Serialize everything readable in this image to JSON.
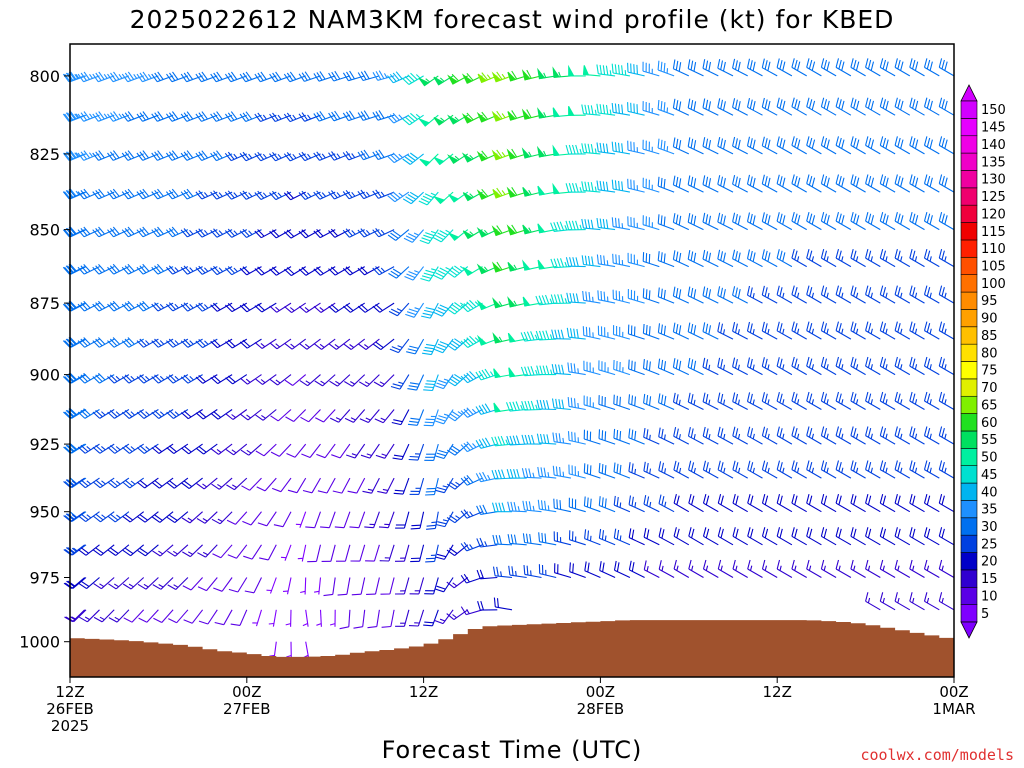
{
  "title": "2025022612 NAM3KM forecast wind profile (kt) for KBED",
  "credit": "coolwx.com/models",
  "chart_data": {
    "type": "wind_barb_profile",
    "title": "2025022612 NAM3KM forecast wind profile (kt) for KBED",
    "xlabel": "Forecast Time (UTC)",
    "ylabel": "",
    "units": "kt",
    "x_start": "2025-02-26 12Z",
    "x_end": "2025-03-01 00Z",
    "time_step_hours": 1,
    "y_axis": {
      "ticks": [
        800,
        825,
        850,
        875,
        900,
        925,
        950,
        975,
        1000
      ],
      "ylim": [
        790,
        1014
      ],
      "direction": "inverted"
    },
    "x_ticks": [
      {
        "hour": 0,
        "lines": [
          "12Z",
          "26FEB",
          "2025"
        ]
      },
      {
        "hour": 12,
        "lines": [
          "00Z",
          "27FEB"
        ]
      },
      {
        "hour": 24,
        "lines": [
          "12Z"
        ]
      },
      {
        "hour": 36,
        "lines": [
          "00Z",
          "28FEB"
        ]
      },
      {
        "hour": 48,
        "lines": [
          "12Z"
        ]
      },
      {
        "hour": 60,
        "lines": [
          "00Z",
          "1MAR"
        ]
      }
    ],
    "colorbar": {
      "min": 5,
      "max": 150,
      "step": 5,
      "labels": [
        5,
        10,
        15,
        20,
        25,
        30,
        35,
        40,
        45,
        50,
        55,
        60,
        65,
        70,
        75,
        80,
        85,
        90,
        95,
        100,
        105,
        110,
        115,
        120,
        125,
        130,
        135,
        140,
        145,
        150
      ]
    },
    "surface_pressure_hpa": {
      "hours": [
        0,
        2,
        4,
        6,
        8,
        10,
        12,
        14,
        16,
        18,
        20,
        22,
        24,
        25,
        26,
        27,
        28,
        30,
        32,
        34,
        36,
        38,
        40,
        42,
        44,
        46,
        48,
        50,
        52,
        54,
        56,
        58,
        60
      ],
      "pressure": [
        998.5,
        999.0,
        999.5,
        1000.5,
        1001.5,
        1003.5,
        1004.5,
        1006.0,
        1006.0,
        1005.5,
        1004.0,
        1003.0,
        1001.5,
        1000.0,
        998.0,
        996.0,
        994.0,
        993.5,
        993.0,
        992.5,
        992.0,
        991.5,
        991.5,
        991.5,
        991.5,
        991.5,
        991.5,
        991.5,
        992.0,
        993.0,
        995.0,
        997.0,
        999.0
      ]
    },
    "wind_samples": [
      {
        "hour": 0,
        "levels": [
          [
            800,
            250,
            35
          ],
          [
            850,
            245,
            32
          ],
          [
            900,
            240,
            30
          ],
          [
            950,
            235,
            28
          ],
          [
            990,
            225,
            15
          ]
        ]
      },
      {
        "hour": 8,
        "levels": [
          [
            800,
            250,
            32
          ],
          [
            850,
            245,
            28
          ],
          [
            900,
            240,
            25
          ],
          [
            950,
            230,
            18
          ],
          [
            990,
            220,
            10
          ]
        ]
      },
      {
        "hour": 16,
        "levels": [
          [
            800,
            250,
            28
          ],
          [
            850,
            240,
            20
          ],
          [
            900,
            230,
            12
          ],
          [
            950,
            200,
            7
          ],
          [
            990,
            170,
            6
          ]
        ]
      },
      {
        "hour": 22,
        "levels": [
          [
            800,
            255,
            33
          ],
          [
            850,
            245,
            25
          ],
          [
            900,
            225,
            16
          ],
          [
            950,
            200,
            14
          ],
          [
            990,
            190,
            10
          ]
        ]
      },
      {
        "hour": 25,
        "levels": [
          [
            800,
            235,
            55
          ],
          [
            850,
            215,
            45
          ],
          [
            900,
            200,
            38
          ],
          [
            950,
            190,
            26
          ],
          [
            985,
            200,
            18
          ]
        ]
      },
      {
        "hour": 30,
        "levels": [
          [
            800,
            250,
            65
          ],
          [
            850,
            250,
            62
          ],
          [
            900,
            260,
            52
          ],
          [
            950,
            270,
            38
          ],
          [
            985,
            280,
            22
          ]
        ]
      },
      {
        "hour": 36,
        "levels": [
          [
            800,
            275,
            50
          ],
          [
            850,
            275,
            40
          ],
          [
            900,
            285,
            35
          ],
          [
            950,
            290,
            30
          ],
          [
            980,
            295,
            18
          ]
        ]
      },
      {
        "hour": 42,
        "levels": [
          [
            800,
            295,
            32
          ],
          [
            850,
            295,
            30
          ],
          [
            900,
            295,
            28
          ],
          [
            950,
            300,
            22
          ],
          [
            980,
            300,
            15
          ]
        ]
      },
      {
        "hour": 50,
        "levels": [
          [
            800,
            300,
            30
          ],
          [
            850,
            300,
            28
          ],
          [
            900,
            300,
            25
          ],
          [
            950,
            300,
            22
          ],
          [
            980,
            300,
            15
          ]
        ]
      },
      {
        "hour": 60,
        "levels": [
          [
            800,
            300,
            32
          ],
          [
            850,
            300,
            28
          ],
          [
            900,
            300,
            25
          ],
          [
            950,
            300,
            22
          ],
          [
            980,
            300,
            15
          ]
        ]
      }
    ]
  }
}
